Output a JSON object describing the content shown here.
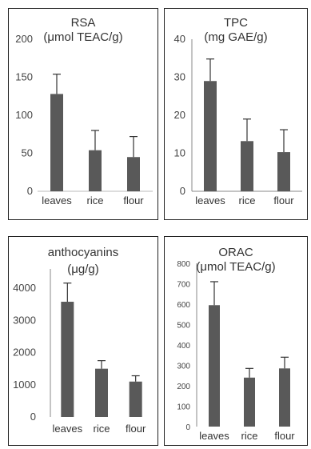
{
  "chart_data": [
    {
      "type": "bar",
      "title": "RSA",
      "subtitle": "(μmol TEAC/g)",
      "categories": [
        "leaves",
        "rice",
        "flour"
      ],
      "values": [
        128,
        54,
        45
      ],
      "errors": [
        26,
        26,
        27
      ],
      "yticks": [
        0,
        50,
        100,
        150,
        200
      ],
      "ylim": [
        0,
        200
      ],
      "bar_color": "#595959"
    },
    {
      "type": "bar",
      "title": "TPC",
      "subtitle": "(mg GAE/g)",
      "categories": [
        "leaves",
        "rice",
        "flour"
      ],
      "values": [
        29,
        13.2,
        10.3
      ],
      "errors": [
        5.8,
        5.8,
        5.9
      ],
      "yticks": [
        0,
        10,
        20,
        30,
        40
      ],
      "ylim": [
        0,
        40
      ],
      "bar_color": "#595959"
    },
    {
      "type": "bar",
      "title": "anthocyanins",
      "subtitle": "(μg/g)",
      "categories": [
        "leaves",
        "rice",
        "flour"
      ],
      "values": [
        3580,
        1500,
        1100
      ],
      "errors": [
        580,
        250,
        180
      ],
      "yticks": [
        0,
        1000,
        2000,
        3000,
        4000
      ],
      "ylim": [
        0,
        4600
      ],
      "bar_color": "#595959"
    },
    {
      "type": "bar",
      "title": "ORAC",
      "subtitle": "(μmol  TEAC/g)",
      "categories": [
        "leaves",
        "rice",
        "flour"
      ],
      "values": [
        595,
        240,
        285
      ],
      "errors": [
        115,
        45,
        55
      ],
      "yticks": [
        0,
        100,
        200,
        300,
        400,
        500,
        600,
        700,
        800
      ],
      "ylim": [
        0,
        800
      ],
      "bar_color": "#595959"
    }
  ]
}
